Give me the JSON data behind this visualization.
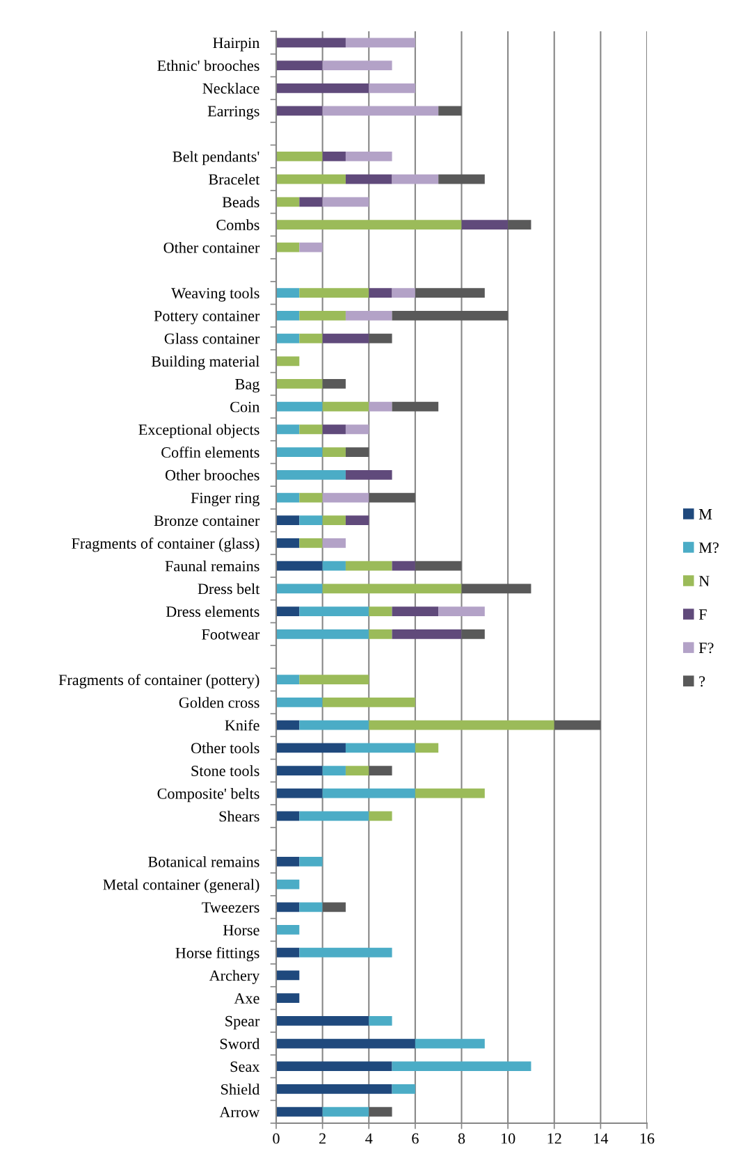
{
  "chart_data": {
    "type": "bar",
    "orientation": "horizontal",
    "stacked": true,
    "categories": [
      "Hairpin",
      "Ethnic' brooches",
      "Necklace",
      "Earrings",
      null,
      "Belt pendants'",
      "Bracelet",
      "Beads",
      "Combs",
      "Other container",
      null,
      "Weaving tools",
      "Pottery container",
      "Glass container",
      "Building material",
      "Bag",
      "Coin",
      "Exceptional objects",
      "Coffin elements",
      "Other brooches",
      "Finger ring",
      "Bronze container",
      "Fragments of container (glass)",
      "Faunal remains",
      "Dress belt",
      "Dress elements",
      "Footwear",
      null,
      "Fragments of container (pottery)",
      "Golden cross",
      "Knife",
      "Other tools",
      "Stone tools",
      "Composite' belts",
      "Shears",
      null,
      "Botanical remains",
      "Metal container (general)",
      "Tweezers",
      "Horse",
      "Horse fittings",
      "Archery",
      "Axe",
      "Spear",
      "Sword",
      "Seax",
      "Shield",
      "Arrow"
    ],
    "series": [
      {
        "name": "M",
        "color": "#1f497d",
        "values": [
          0,
          0,
          0,
          0,
          null,
          0,
          0,
          0,
          0,
          0,
          null,
          0,
          0,
          0,
          0,
          0,
          0,
          0,
          0,
          0,
          0,
          1,
          1,
          2,
          0,
          1,
          0,
          null,
          0,
          0,
          1,
          3,
          2,
          2,
          1,
          null,
          1,
          0,
          1,
          0,
          1,
          1,
          1,
          4,
          6,
          5,
          5,
          2
        ]
      },
      {
        "name": "M?",
        "color": "#4bacc6",
        "values": [
          0,
          0,
          0,
          0,
          null,
          0,
          0,
          0,
          0,
          0,
          null,
          1,
          1,
          1,
          0,
          0,
          2,
          1,
          2,
          3,
          1,
          1,
          0,
          1,
          2,
          3,
          4,
          null,
          1,
          2,
          3,
          3,
          1,
          4,
          3,
          null,
          1,
          1,
          1,
          1,
          4,
          0,
          0,
          1,
          3,
          6,
          1,
          2
        ]
      },
      {
        "name": "N",
        "color": "#9bbb59",
        "values": [
          0,
          0,
          0,
          0,
          null,
          2,
          3,
          1,
          8,
          1,
          null,
          3,
          2,
          1,
          1,
          2,
          2,
          1,
          1,
          0,
          1,
          1,
          1,
          2,
          6,
          1,
          1,
          null,
          3,
          4,
          8,
          1,
          1,
          3,
          1,
          null,
          0,
          0,
          0,
          0,
          0,
          0,
          0,
          0,
          0,
          0,
          0,
          0
        ]
      },
      {
        "name": "F",
        "color": "#604a7b",
        "values": [
          3,
          2,
          4,
          2,
          null,
          1,
          2,
          1,
          2,
          0,
          null,
          1,
          0,
          2,
          0,
          0,
          0,
          1,
          0,
          2,
          0,
          1,
          0,
          1,
          0,
          2,
          3,
          null,
          0,
          0,
          0,
          0,
          0,
          0,
          0,
          null,
          0,
          0,
          0,
          0,
          0,
          0,
          0,
          0,
          0,
          0,
          0,
          0
        ]
      },
      {
        "name": "F?",
        "color": "#b3a2c7",
        "values": [
          3,
          3,
          2,
          5,
          null,
          2,
          2,
          2,
          0,
          1,
          null,
          1,
          2,
          0,
          0,
          0,
          1,
          1,
          0,
          0,
          2,
          0,
          1,
          0,
          0,
          2,
          0,
          null,
          0,
          0,
          0,
          0,
          0,
          0,
          0,
          null,
          0,
          0,
          0,
          0,
          0,
          0,
          0,
          0,
          0,
          0,
          0,
          0
        ]
      },
      {
        "name": "?",
        "color": "#595959",
        "values": [
          0,
          0,
          0,
          1,
          null,
          0,
          2,
          0,
          1,
          0,
          null,
          3,
          5,
          1,
          0,
          1,
          2,
          0,
          1,
          0,
          2,
          0,
          0,
          2,
          3,
          0,
          1,
          null,
          0,
          0,
          2,
          0,
          1,
          0,
          0,
          null,
          0,
          0,
          1,
          0,
          0,
          0,
          0,
          0,
          0,
          0,
          0,
          1
        ]
      }
    ],
    "xlim": [
      0,
      16
    ],
    "xticks": [
      0,
      2,
      4,
      6,
      8,
      10,
      12,
      14,
      16
    ],
    "grid": "x",
    "legend": "right"
  }
}
